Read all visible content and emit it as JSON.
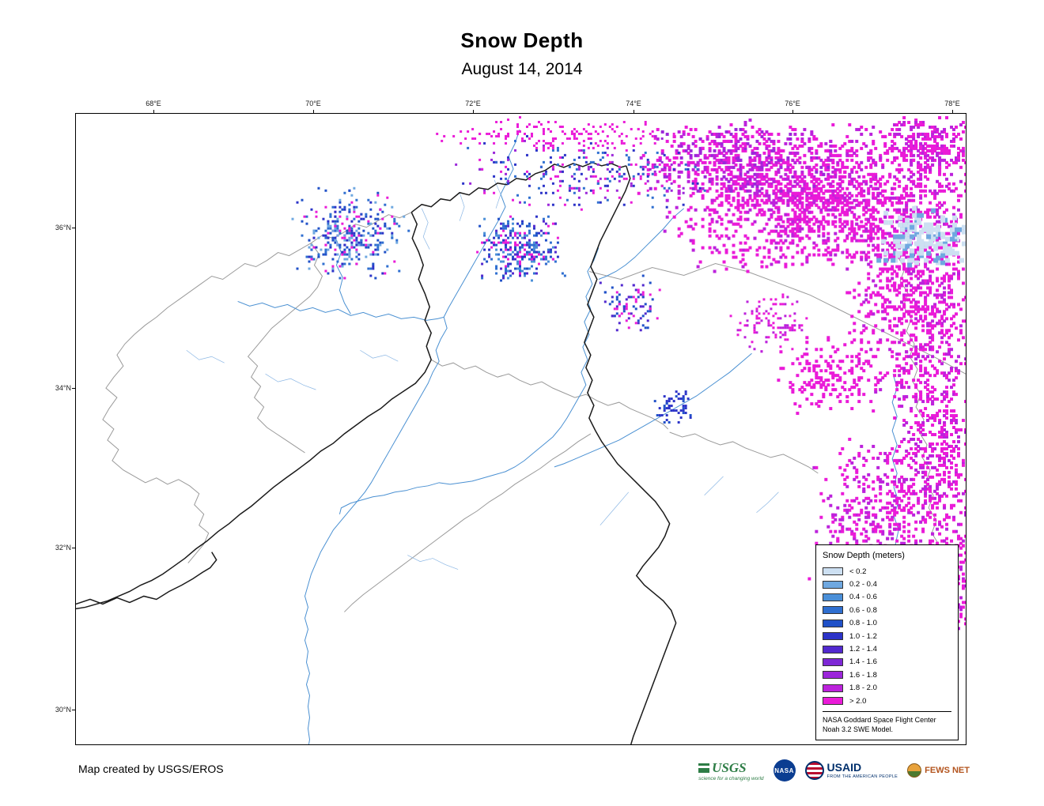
{
  "title": "Snow Depth",
  "subtitle": "August 14, 2014",
  "map": {
    "lon_labels": [
      "68°E",
      "70°E",
      "72°E",
      "74°E",
      "76°E",
      "78°E"
    ],
    "lat_labels": [
      "36°N",
      "34°N",
      "32°N",
      "30°N"
    ]
  },
  "legend": {
    "title": "Snow Depth (meters)",
    "items": [
      {
        "label": "< 0.2",
        "color": "#cde0f2"
      },
      {
        "label": "0.2 - 0.4",
        "color": "#6fa8e0"
      },
      {
        "label": "0.4 - 0.6",
        "color": "#4a8fd8"
      },
      {
        "label": "0.6 - 0.8",
        "color": "#2f6fd0"
      },
      {
        "label": "0.8 - 1.0",
        "color": "#2051c8"
      },
      {
        "label": "1.0 - 1.2",
        "color": "#2c33c8"
      },
      {
        "label": "1.2 - 1.4",
        "color": "#5229cf"
      },
      {
        "label": "1.4 - 1.6",
        "color": "#7e28d6"
      },
      {
        "label": "1.6 - 1.8",
        "color": "#9c26da"
      },
      {
        "label": "1.8 - 2.0",
        "color": "#bc22dc"
      },
      {
        "label": "> 2.0",
        "color": "#ea1bd8"
      }
    ],
    "credit_line1": "NASA Goddard Space Flight Center",
    "credit_line2": "Noah 3.2 SWE Model."
  },
  "footer": {
    "credit": "Map created by USGS/EROS"
  },
  "logos": {
    "usgs": {
      "name": "USGS",
      "tagline": "science for a changing world",
      "color": "#2e7d46"
    },
    "nasa": {
      "name": "NASA",
      "color": "#0b3d91"
    },
    "usaid": {
      "name": "USAID",
      "tagline": "FROM THE AMERICAN PEOPLE",
      "color": "#002f6c"
    },
    "fews": {
      "name": "FEWS NET",
      "color": "#b3541e"
    }
  }
}
